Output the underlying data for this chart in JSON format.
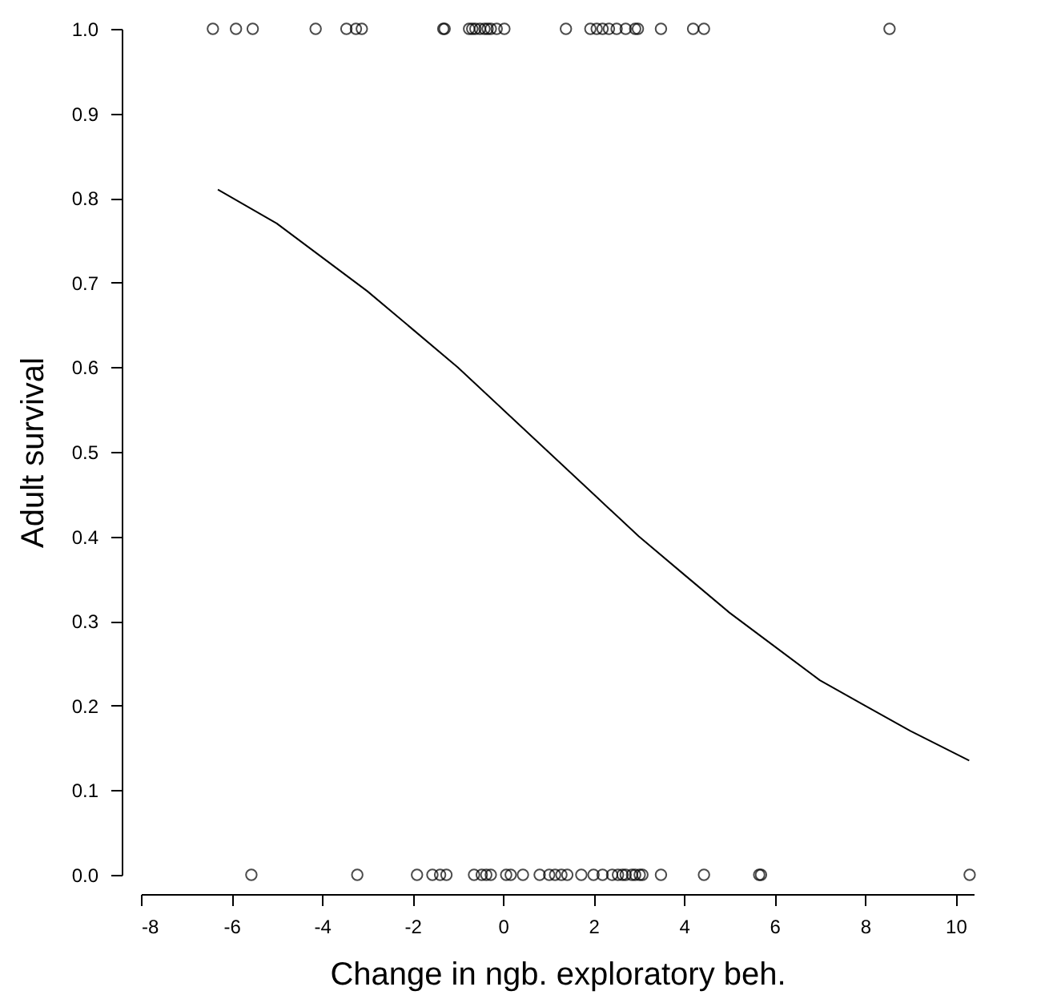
{
  "chart_data": {
    "type": "scatter",
    "xlabel": "Change in ngb. exploratory beh.",
    "ylabel": "Adult survival",
    "xlim": [
      -8,
      10.4
    ],
    "xticks": [
      -8,
      -6,
      -4,
      -2,
      0,
      2,
      4,
      6,
      8,
      10
    ],
    "ylim": [
      0,
      1
    ],
    "yticks": [
      {
        "value": 0,
        "label": "0.0"
      },
      0.1,
      0.2,
      0.3,
      0.4,
      0.5,
      0.6,
      0.7,
      0.8,
      0.9,
      {
        "value": 1,
        "label": "1.0"
      }
    ],
    "grid": false,
    "series": [
      {
        "color": "#000000",
        "marker": "circle",
        "x": [
          -6.41,
          -5.9,
          -5.53,
          -4.14,
          -3.46,
          -3.25,
          -3.12,
          -1.32,
          -1.29,
          -0.75,
          -0.68,
          -0.61,
          -0.51,
          -0.41,
          -0.34,
          -0.27,
          -0.14,
          0.03,
          1.39,
          1.93,
          2.07,
          2.2,
          2.34,
          2.51,
          2.71,
          2.92,
          2.98,
          3.49,
          4.2,
          4.44,
          8.54,
          -5.56,
          -3.22,
          -1.9,
          -1.56,
          -1.39,
          -1.25,
          -0.64,
          -0.47,
          -0.37,
          -0.27,
          0.07,
          0.17,
          0.44,
          0.81,
          1.02,
          1.15,
          1.29,
          1.42,
          1.73,
          2.0,
          2.2,
          2.41,
          2.54,
          2.64,
          2.71,
          2.85,
          2.92,
          3.02,
          3.08,
          3.49,
          4.44,
          5.66,
          5.7,
          10.31
        ],
        "values": [
          1,
          1,
          1,
          1,
          1,
          1,
          1,
          1,
          1,
          1,
          1,
          1,
          1,
          1,
          1,
          1,
          1,
          1,
          1,
          1,
          1,
          1,
          1,
          1,
          1,
          1,
          1,
          1,
          1,
          1,
          1,
          0,
          0,
          0,
          0,
          0,
          0,
          0,
          0,
          0,
          0,
          0,
          0,
          0,
          0,
          0,
          0,
          0,
          0,
          0,
          0,
          0,
          0,
          0,
          0,
          0,
          0,
          0,
          0,
          0,
          0,
          0,
          0,
          0,
          0
        ]
      },
      {
        "type": "line",
        "color": "#000000",
        "line_style": "solid",
        "x": [
          -6.3,
          -5,
          -4,
          -3,
          -2,
          -1,
          0,
          1,
          2,
          3,
          4,
          5,
          6,
          7,
          8,
          9,
          10.3
        ],
        "values": [
          0.81,
          0.77,
          0.73,
          0.69,
          0.645,
          0.6,
          0.55,
          0.5,
          0.45,
          0.4,
          0.355,
          0.31,
          0.27,
          0.23,
          0.2,
          0.17,
          0.135
        ]
      }
    ]
  }
}
